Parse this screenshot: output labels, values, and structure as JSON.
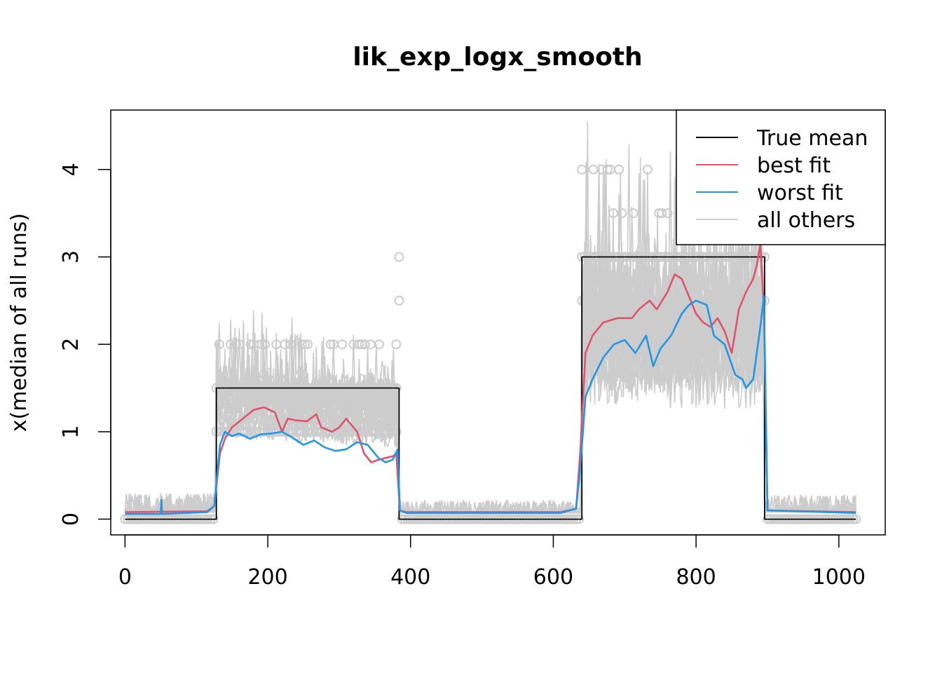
{
  "chart_data": {
    "type": "line",
    "title": "lik_exp_logx_smooth",
    "xlabel": "",
    "ylabel": "x(median of all runs)",
    "xlim": [
      -20,
      1065
    ],
    "ylim": [
      -0.18,
      4.68
    ],
    "x_ticks": [
      0,
      200,
      400,
      600,
      800,
      1000
    ],
    "x_tick_labels": [
      "0",
      "200",
      "400",
      "600",
      "800",
      "1000"
    ],
    "y_ticks": [
      0,
      1,
      2,
      3,
      4
    ],
    "y_tick_labels": [
      "0",
      "1",
      "2",
      "3",
      "4"
    ],
    "grid": false,
    "legend_position": "top-right",
    "colors": {
      "true_mean": "#000000",
      "best_fit": "#DF536B",
      "worst_fit": "#2297E6",
      "all_others": "#CCCCCC"
    },
    "series": [
      {
        "name": "True mean",
        "x": [
          0,
          128,
          128,
          384,
          384,
          640,
          640,
          896,
          896,
          1024
        ],
        "values": [
          0,
          0,
          1.5,
          1.5,
          0,
          0,
          3,
          3,
          0,
          0
        ]
      },
      {
        "name": "best fit",
        "x": [
          0,
          115,
          125,
          133,
          140,
          150,
          165,
          180,
          195,
          210,
          220,
          228,
          240,
          255,
          268,
          275,
          290,
          300,
          310,
          325,
          335,
          345,
          355,
          365,
          375,
          380,
          385,
          395,
          450,
          500,
          560,
          610,
          632,
          638,
          645,
          655,
          670,
          690,
          700,
          710,
          720,
          735,
          745,
          760,
          770,
          780,
          790,
          800,
          810,
          820,
          830,
          840,
          850,
          860,
          870,
          880,
          885,
          890,
          895,
          900,
          1024
        ],
        "values": [
          0.08,
          0.09,
          0.15,
          0.75,
          0.92,
          1.05,
          1.15,
          1.25,
          1.28,
          1.22,
          1.0,
          1.15,
          1.13,
          1.12,
          1.2,
          1.05,
          1.0,
          1.05,
          1.15,
          1.0,
          0.75,
          0.65,
          0.68,
          0.7,
          0.72,
          0.75,
          0.1,
          0.08,
          0.08,
          0.08,
          0.08,
          0.08,
          0.12,
          0.8,
          1.9,
          2.1,
          2.25,
          2.3,
          2.3,
          2.3,
          2.4,
          2.5,
          2.4,
          2.6,
          2.8,
          2.75,
          2.55,
          2.35,
          2.25,
          2.2,
          2.3,
          2.15,
          1.9,
          2.4,
          2.6,
          2.75,
          2.9,
          3.15,
          2.4,
          0.1,
          0.08
        ]
      },
      {
        "name": "worst fit",
        "x": [
          0,
          50,
          51,
          52,
          115,
          125,
          133,
          140,
          150,
          160,
          175,
          190,
          205,
          220,
          235,
          250,
          265,
          280,
          295,
          310,
          325,
          340,
          355,
          365,
          375,
          382,
          385,
          395,
          450,
          500,
          560,
          610,
          632,
          638,
          645,
          655,
          670,
          685,
          700,
          715,
          730,
          740,
          750,
          765,
          780,
          790,
          800,
          815,
          825,
          840,
          855,
          865,
          870,
          880,
          890,
          895,
          900,
          1024
        ],
        "values": [
          0.06,
          0.06,
          0.22,
          0.06,
          0.08,
          0.15,
          0.85,
          1.0,
          0.95,
          0.98,
          0.92,
          0.97,
          0.98,
          1.0,
          0.93,
          0.85,
          0.9,
          0.82,
          0.78,
          0.8,
          0.88,
          0.85,
          0.7,
          0.65,
          0.68,
          0.8,
          0.1,
          0.07,
          0.07,
          0.07,
          0.07,
          0.07,
          0.12,
          0.6,
          1.4,
          1.6,
          1.85,
          2.0,
          2.05,
          1.9,
          2.1,
          1.75,
          1.95,
          2.1,
          2.35,
          2.45,
          2.5,
          2.45,
          2.1,
          2.0,
          1.65,
          1.6,
          1.5,
          1.6,
          2.2,
          2.55,
          0.1,
          0.07
        ]
      },
      {
        "name": "all others",
        "x": [],
        "values": []
      }
    ]
  },
  "legend": [
    {
      "label": "True mean",
      "color": "#000000"
    },
    {
      "label": "best fit",
      "color": "#DF536B"
    },
    {
      "label": "worst fit",
      "color": "#2297E6"
    },
    {
      "label": "all others",
      "color": "#CCCCCC"
    }
  ]
}
